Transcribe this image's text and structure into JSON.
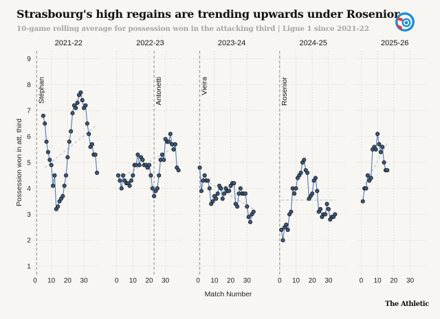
{
  "title": "Strasbourg's high regains are trending upwards under Rosenior",
  "subtitle": "10-game rolling average for possession won in the attacking third | Ligue 1 since 2021-22",
  "brand": "The Athletic",
  "logo": "RC Strasbourg crest",
  "colors": {
    "line": "#5b82b8",
    "point_fill": "#3d5a80",
    "point_stroke": "#1a1a1a",
    "trend": "#b8c6d6",
    "manager_line": "#888888",
    "grid": "#d8d8d4",
    "background": "#f7f6f2"
  },
  "chart_data": {
    "type": "line",
    "title": "Strasbourg's high regains are trending upwards under Rosenior",
    "xlabel": "Match Number",
    "ylabel": "Possession won in att. third",
    "ylim": [
      0.6,
      9.3
    ],
    "xlim": [
      -3,
      40
    ],
    "yticks": [
      1,
      2,
      3,
      4,
      5,
      6,
      7,
      8,
      9
    ],
    "xticks": [
      0,
      10,
      20,
      30
    ],
    "grid": true,
    "panels": [
      {
        "season": "2021-22",
        "start_match": 5,
        "values": [
          6.8,
          6.5,
          5.8,
          5.4,
          5.1,
          4.9,
          4.1,
          4.5,
          3.2,
          3.3,
          3.5,
          3.6,
          3.7,
          4.1,
          4.5,
          5.2,
          5.8,
          6.2,
          6.9,
          7.2,
          7.1,
          7.3,
          7.6,
          7.7,
          7.4,
          7.1,
          7.2,
          6.5,
          6.1,
          5.6,
          5.7,
          5.3,
          5.3,
          4.6
        ],
        "trend": [
          [
            6,
            4.8
          ],
          [
            38,
            6.45
          ]
        ],
        "manager": {
          "name": "Stéphan",
          "match": 1
        }
      },
      {
        "season": "2022-23",
        "start_match": 1,
        "values": [
          4.5,
          4.3,
          4.0,
          4.5,
          4.3,
          4.2,
          4.2,
          4.1,
          4.3,
          4.5,
          4.9,
          4.9,
          5.3,
          4.9,
          5.2,
          5.1,
          4.9,
          4.9,
          4.8,
          4.9,
          4.5,
          4.0,
          3.7,
          3.9,
          4.0,
          4.5,
          5.1,
          5.3,
          5.1,
          5.9,
          5.8,
          5.8,
          6.1,
          5.7,
          5.5,
          5.7,
          4.8,
          4.7
        ],
        "trend": [
          [
            2,
            4.4
          ],
          [
            36,
            5.6
          ]
        ],
        "manager": {
          "name": "Antonetti",
          "match": 23
        }
      },
      {
        "season": "2023-24",
        "start_match": 1,
        "values": [
          4.8,
          3.9,
          4.3,
          4.5,
          4.3,
          4.3,
          4.0,
          3.4,
          3.5,
          3.7,
          3.6,
          3.8,
          4.1,
          4.0,
          3.6,
          3.8,
          4.0,
          3.9,
          3.9,
          4.1,
          4.2,
          4.2,
          3.4,
          3.3,
          3.8,
          4.0,
          3.8,
          3.8,
          3.8,
          3.3,
          2.9,
          2.7,
          3.0,
          3.1
        ],
        "trend": [
          [
            2,
            4.4
          ],
          [
            34,
            3.2
          ]
        ],
        "manager": {
          "name": "Vieira",
          "match": 1
        }
      },
      {
        "season": "2024-25",
        "start_match": 1,
        "values": [
          2.4,
          2.0,
          2.5,
          2.6,
          2.4,
          3.0,
          3.1,
          4.0,
          3.8,
          4.0,
          4.4,
          4.5,
          4.6,
          5.0,
          5.1,
          4.7,
          4.6,
          3.6,
          3.7,
          3.8,
          4.3,
          4.4,
          3.9,
          3.1,
          3.2,
          2.9,
          3.0,
          3.0,
          3.4,
          3.2,
          2.8,
          2.9,
          2.9,
          3.0
        ],
        "trend": [
          [
            1,
            3.55
          ],
          [
            34,
            3.55
          ]
        ],
        "manager": {
          "name": "Rosenior",
          "match": 0
        }
      },
      {
        "season": "2025-26",
        "start_match": 1,
        "values": [
          3.5,
          4.0,
          4.0,
          4.5,
          4.3,
          4.4,
          5.5,
          5.6,
          5.5,
          6.1,
          5.7,
          5.4,
          5.6,
          5.0,
          4.7,
          4.7
        ],
        "trend": [
          [
            1,
            4.0
          ],
          [
            16,
            5.75
          ]
        ],
        "manager": null
      }
    ]
  }
}
